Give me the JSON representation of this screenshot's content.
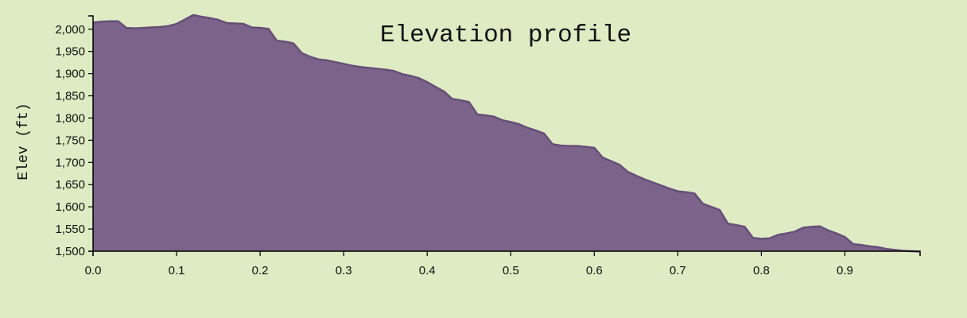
{
  "chart_data": {
    "type": "area",
    "title": "Elevation profile",
    "xlabel": "",
    "ylabel": "Elev (ft)",
    "xlim": [
      0,
      0.99
    ],
    "ylim": [
      1500,
      2030
    ],
    "x_ticks": [
      0.0,
      0.1,
      0.2,
      0.3,
      0.4,
      0.5,
      0.6,
      0.7,
      0.8,
      0.9
    ],
    "x_tick_labels": [
      "0.0",
      "0.1",
      "0.2",
      "0.3",
      "0.4",
      "0.5",
      "0.6",
      "0.7",
      "0.8",
      "0.9"
    ],
    "y_ticks": [
      1500,
      1550,
      1600,
      1650,
      1700,
      1750,
      1800,
      1850,
      1900,
      1950,
      2000
    ],
    "y_tick_labels": [
      "1,500",
      "1,550",
      "1,600",
      "1,650",
      "1,700",
      "1,750",
      "1,800",
      "1,850",
      "1,900",
      "1,950",
      "2,000"
    ],
    "grid": false,
    "colors": {
      "fill": "#7b6389",
      "stroke": "#674f78",
      "background": "#deebc3"
    },
    "series": [
      {
        "x": [
          0.0,
          0.01,
          0.02,
          0.03,
          0.04,
          0.05,
          0.06,
          0.07,
          0.08,
          0.09,
          0.1,
          0.11,
          0.12,
          0.13,
          0.14,
          0.15,
          0.16,
          0.17,
          0.18,
          0.19,
          0.2,
          0.21,
          0.22,
          0.23,
          0.24,
          0.25,
          0.26,
          0.27,
          0.28,
          0.29,
          0.3,
          0.31,
          0.32,
          0.33,
          0.34,
          0.35,
          0.36,
          0.37,
          0.38,
          0.39,
          0.4,
          0.41,
          0.42,
          0.43,
          0.44,
          0.45,
          0.46,
          0.47,
          0.48,
          0.49,
          0.5,
          0.51,
          0.52,
          0.53,
          0.54,
          0.55,
          0.56,
          0.57,
          0.58,
          0.59,
          0.6,
          0.61,
          0.62,
          0.63,
          0.64,
          0.65,
          0.66,
          0.67,
          0.68,
          0.69,
          0.7,
          0.71,
          0.72,
          0.73,
          0.74,
          0.75,
          0.76,
          0.77,
          0.78,
          0.79,
          0.8,
          0.81,
          0.82,
          0.83,
          0.84,
          0.85,
          0.86,
          0.87,
          0.88,
          0.89,
          0.9,
          0.91,
          0.92,
          0.93,
          0.94,
          0.95,
          0.96,
          0.97,
          0.98,
          0.99
        ],
        "values": [
          2015,
          2017,
          2018,
          2018,
          2003,
          2002,
          2003,
          2004,
          2005,
          2007,
          2012,
          2022,
          2032,
          2028,
          2025,
          2021,
          2014,
          2013,
          2012,
          2004,
          2003,
          2001,
          1974,
          1972,
          1968,
          1946,
          1938,
          1932,
          1930,
          1926,
          1922,
          1918,
          1915,
          1913,
          1911,
          1909,
          1906,
          1899,
          1895,
          1890,
          1881,
          1870,
          1860,
          1843,
          1840,
          1836,
          1808,
          1806,
          1803,
          1795,
          1791,
          1786,
          1778,
          1772,
          1765,
          1741,
          1738,
          1737,
          1737,
          1735,
          1733,
          1711,
          1703,
          1695,
          1679,
          1670,
          1662,
          1655,
          1648,
          1641,
          1635,
          1633,
          1630,
          1607,
          1600,
          1593,
          1562,
          1559,
          1555,
          1530,
          1528,
          1529,
          1537,
          1540,
          1544,
          1553,
          1555,
          1556,
          1547,
          1540,
          1532,
          1516,
          1514,
          1511,
          1509,
          1505,
          1503,
          1501,
          1500,
          1499
        ]
      }
    ]
  }
}
